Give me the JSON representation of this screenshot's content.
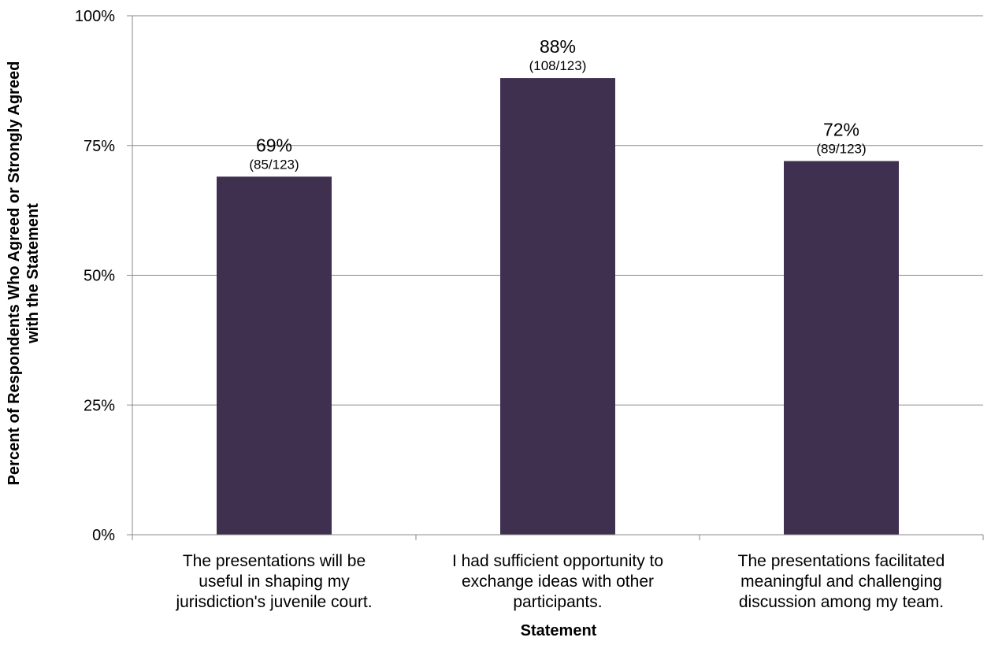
{
  "chart_data": {
    "type": "bar",
    "categories": [
      [
        "The presentations will be",
        "useful in shaping my",
        "jurisdiction's juvenile court."
      ],
      [
        "I had sufficient opportunity to",
        "exchange ideas with other",
        "participants."
      ],
      [
        "The presentations facilitated",
        "meaningful and challenging",
        "discussion among my team."
      ]
    ],
    "values": [
      69,
      88,
      72
    ],
    "value_labels": [
      "69%",
      "88%",
      "72%"
    ],
    "fraction_labels": [
      "(85/123)",
      "(108/123)",
      "(89/123)"
    ],
    "xlabel": "Statement",
    "ylabel": [
      "Percent of Respondents Who Agreed or Strongly Agreed",
      "with the Statement"
    ],
    "ylim": [
      0,
      100
    ],
    "yticks": [
      0,
      25,
      50,
      75,
      100
    ],
    "ytick_labels": [
      "0%",
      "25%",
      "50%",
      "75%",
      "100%"
    ],
    "grid": true,
    "bar_color": "#3f3050",
    "grid_color": "#888888"
  }
}
